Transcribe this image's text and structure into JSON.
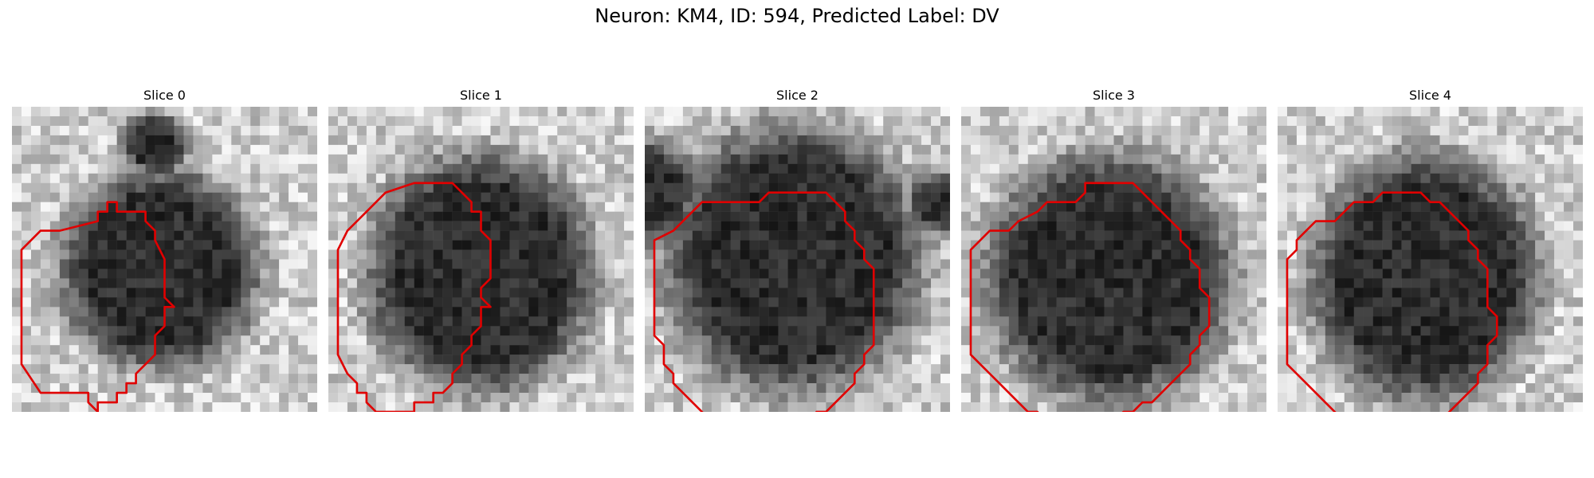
{
  "figure": {
    "title": "Neuron: KM4, ID: 594, Predicted Label: DV"
  },
  "colors": {
    "contour": "#e00000",
    "background_light": "#d8d8d8",
    "cell_dark": "#2a2a2a"
  },
  "panels": [
    {
      "title": "Slice 0",
      "contour": [
        [
          5,
          13
        ],
        [
          9,
          12
        ],
        [
          9,
          11
        ],
        [
          10,
          11
        ],
        [
          10,
          10
        ],
        [
          11,
          10
        ],
        [
          11,
          11
        ],
        [
          12,
          11
        ],
        [
          12,
          11
        ],
        [
          13,
          11
        ],
        [
          13,
          11
        ],
        [
          14,
          11
        ],
        [
          14,
          12
        ],
        [
          15,
          13
        ],
        [
          15,
          14
        ],
        [
          16,
          16
        ],
        [
          16,
          17
        ],
        [
          16,
          19
        ],
        [
          16,
          20
        ],
        [
          17,
          21
        ],
        [
          16,
          21
        ],
        [
          16,
          22
        ],
        [
          16,
          23
        ],
        [
          15,
          24
        ],
        [
          15,
          25
        ],
        [
          15,
          26
        ],
        [
          14,
          27
        ],
        [
          13,
          28
        ],
        [
          13,
          29
        ],
        [
          12,
          29
        ],
        [
          12,
          30
        ],
        [
          11,
          30
        ],
        [
          11,
          31
        ],
        [
          10,
          31
        ],
        [
          10,
          31
        ],
        [
          9,
          31
        ],
        [
          9,
          32
        ],
        [
          9,
          32
        ],
        [
          8,
          31
        ],
        [
          8,
          30
        ],
        [
          5,
          30
        ],
        [
          3,
          30
        ],
        [
          1,
          27
        ],
        [
          1,
          23
        ],
        [
          1,
          18
        ],
        [
          1,
          15
        ],
        [
          3,
          13
        ]
      ]
    },
    {
      "title": "Slice 1",
      "contour": [
        [
          6,
          9
        ],
        [
          9,
          8
        ],
        [
          10,
          8
        ],
        [
          11,
          8
        ],
        [
          12,
          8
        ],
        [
          13,
          8
        ],
        [
          13,
          8
        ],
        [
          14,
          9
        ],
        [
          15,
          10
        ],
        [
          15,
          10
        ],
        [
          15,
          11
        ],
        [
          16,
          11
        ],
        [
          16,
          12
        ],
        [
          16,
          13
        ],
        [
          17,
          14
        ],
        [
          17,
          15
        ],
        [
          17,
          16
        ],
        [
          17,
          17
        ],
        [
          17,
          18
        ],
        [
          16,
          19
        ],
        [
          16,
          20
        ],
        [
          17,
          21
        ],
        [
          16,
          21
        ],
        [
          16,
          22
        ],
        [
          16,
          23
        ],
        [
          15,
          24
        ],
        [
          15,
          25
        ],
        [
          14,
          26
        ],
        [
          14,
          27
        ],
        [
          13,
          28
        ],
        [
          13,
          29
        ],
        [
          12,
          30
        ],
        [
          11,
          30
        ],
        [
          11,
          31
        ],
        [
          10,
          31
        ],
        [
          9,
          31
        ],
        [
          9,
          32
        ],
        [
          8,
          32
        ],
        [
          7,
          32
        ],
        [
          6,
          32
        ],
        [
          5,
          32
        ],
        [
          4,
          31
        ],
        [
          4,
          31
        ],
        [
          4,
          30
        ],
        [
          3,
          30
        ],
        [
          3,
          29
        ],
        [
          2,
          28
        ],
        [
          1,
          26
        ],
        [
          1,
          25
        ],
        [
          1,
          24
        ],
        [
          1,
          22
        ],
        [
          1,
          19
        ],
        [
          1,
          17
        ],
        [
          1,
          15
        ],
        [
          2,
          13
        ],
        [
          3,
          12
        ],
        [
          4,
          11
        ],
        [
          5,
          10
        ]
      ]
    },
    {
      "title": "Slice 2",
      "contour": [
        [
          3,
          13
        ],
        [
          6,
          10
        ],
        [
          9,
          10
        ],
        [
          12,
          10
        ],
        [
          12,
          10
        ],
        [
          13,
          9
        ],
        [
          13,
          9
        ],
        [
          14,
          9
        ],
        [
          16,
          9
        ],
        [
          17,
          9
        ],
        [
          19,
          9
        ],
        [
          20,
          10
        ],
        [
          21,
          11
        ],
        [
          21,
          12
        ],
        [
          22,
          13
        ],
        [
          22,
          14
        ],
        [
          23,
          15
        ],
        [
          23,
          16
        ],
        [
          24,
          17
        ],
        [
          24,
          18
        ],
        [
          24,
          21
        ],
        [
          24,
          24
        ],
        [
          24,
          25
        ],
        [
          23,
          26
        ],
        [
          23,
          27
        ],
        [
          22,
          28
        ],
        [
          22,
          29
        ],
        [
          21,
          30
        ],
        [
          20,
          31
        ],
        [
          19,
          32
        ],
        [
          19,
          32
        ],
        [
          18,
          32
        ],
        [
          18,
          33
        ],
        [
          17,
          33
        ],
        [
          16,
          33
        ],
        [
          15,
          33
        ],
        [
          14,
          33
        ],
        [
          13,
          34
        ],
        [
          12,
          34
        ],
        [
          12,
          33
        ],
        [
          10,
          33
        ],
        [
          8,
          33
        ],
        [
          7,
          33
        ],
        [
          6,
          32
        ],
        [
          5,
          31
        ],
        [
          4,
          30
        ],
        [
          3,
          29
        ],
        [
          3,
          28
        ],
        [
          2,
          27
        ],
        [
          2,
          25
        ],
        [
          1,
          24
        ],
        [
          1,
          21
        ],
        [
          1,
          17
        ],
        [
          1,
          14
        ]
      ]
    },
    {
      "title": "Slice 3",
      "contour": [
        [
          5,
          13
        ],
        [
          6,
          12
        ],
        [
          8,
          11
        ],
        [
          9,
          10
        ],
        [
          11,
          10
        ],
        [
          12,
          10
        ],
        [
          13,
          9
        ],
        [
          13,
          8
        ],
        [
          15,
          8
        ],
        [
          17,
          8
        ],
        [
          18,
          8
        ],
        [
          19,
          9
        ],
        [
          20,
          10
        ],
        [
          21,
          11
        ],
        [
          22,
          12
        ],
        [
          23,
          13
        ],
        [
          23,
          14
        ],
        [
          24,
          15
        ],
        [
          24,
          16
        ],
        [
          25,
          17
        ],
        [
          25,
          18
        ],
        [
          25,
          19
        ],
        [
          26,
          20
        ],
        [
          26,
          21
        ],
        [
          26,
          23
        ],
        [
          25,
          24
        ],
        [
          25,
          25
        ],
        [
          24,
          26
        ],
        [
          24,
          27
        ],
        [
          23,
          28
        ],
        [
          22,
          29
        ],
        [
          21,
          30
        ],
        [
          20,
          31
        ],
        [
          19,
          31
        ],
        [
          18,
          32
        ],
        [
          17,
          32
        ],
        [
          16,
          33
        ],
        [
          15,
          33
        ],
        [
          14,
          33
        ],
        [
          13,
          33
        ],
        [
          12,
          33
        ],
        [
          11,
          33
        ],
        [
          10,
          33
        ],
        [
          9,
          33
        ],
        [
          8,
          32
        ],
        [
          7,
          32
        ],
        [
          6,
          31
        ],
        [
          5,
          30
        ],
        [
          4,
          29
        ],
        [
          3,
          28
        ],
        [
          2,
          27
        ],
        [
          1,
          26
        ],
        [
          1,
          24
        ],
        [
          1,
          21
        ],
        [
          1,
          18
        ],
        [
          1,
          15
        ],
        [
          2,
          14
        ],
        [
          3,
          13
        ]
      ]
    },
    {
      "title": "Slice 4",
      "contour": [
        [
          6,
          12
        ],
        [
          7,
          11
        ],
        [
          8,
          10
        ],
        [
          9,
          10
        ],
        [
          10,
          10
        ],
        [
          11,
          9
        ],
        [
          12,
          9
        ],
        [
          14,
          9
        ],
        [
          15,
          9
        ],
        [
          16,
          10
        ],
        [
          17,
          10
        ],
        [
          18,
          11
        ],
        [
          19,
          12
        ],
        [
          20,
          13
        ],
        [
          20,
          14
        ],
        [
          21,
          15
        ],
        [
          21,
          16
        ],
        [
          22,
          17
        ],
        [
          22,
          18
        ],
        [
          22,
          19
        ],
        [
          22,
          21
        ],
        [
          23,
          22
        ],
        [
          23,
          23
        ],
        [
          23,
          24
        ],
        [
          22,
          25
        ],
        [
          22,
          26
        ],
        [
          22,
          27
        ],
        [
          21,
          28
        ],
        [
          21,
          29
        ],
        [
          20,
          30
        ],
        [
          19,
          31
        ],
        [
          18,
          32
        ],
        [
          17,
          33
        ],
        [
          16,
          34
        ],
        [
          15,
          34
        ],
        [
          14,
          34
        ],
        [
          13,
          34
        ],
        [
          12,
          34
        ],
        [
          11,
          34
        ],
        [
          10,
          34
        ],
        [
          9,
          34
        ],
        [
          8,
          34
        ],
        [
          7,
          33
        ],
        [
          6,
          32
        ],
        [
          5,
          31
        ],
        [
          4,
          30
        ],
        [
          3,
          29
        ],
        [
          2,
          28
        ],
        [
          1,
          27
        ],
        [
          1,
          25
        ],
        [
          1,
          22
        ],
        [
          1,
          19
        ],
        [
          1,
          16
        ],
        [
          2,
          15
        ],
        [
          2,
          14
        ],
        [
          3,
          13
        ],
        [
          4,
          12
        ],
        [
          5,
          12
        ]
      ]
    }
  ]
}
